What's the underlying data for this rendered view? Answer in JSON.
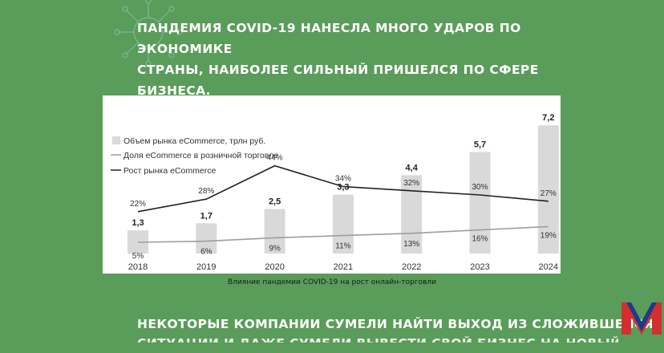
{
  "heading": {
    "line1": "Пандемия COVID-19 нанесла много ударов по экономике",
    "line2": "страны, наиболее сильный пришелся по сфере бизнеса."
  },
  "caption": "Влияние пандемии COVID-19 на рост онлайн-торговли",
  "bottom_text": {
    "line1": "Некоторые компании сумели найти выход из сложившейся",
    "line2": "ситуации и даже сумели вывести свой бизнес на новый уровень"
  },
  "colors": {
    "page_bg": "#5a9c5a",
    "bar": "#d9d9d9",
    "growth_line": "#222222",
    "share_line": "#9e9e9e"
  },
  "chart_data": {
    "type": "bar",
    "categories": [
      "2018",
      "2019",
      "2020",
      "2021",
      "2022",
      "2023",
      "2024"
    ],
    "series": [
      {
        "name": "Объем рынка eCommerce, трлн руб.",
        "type": "bar",
        "values": [
          1.3,
          1.7,
          2.5,
          3.3,
          4.4,
          5.7,
          7.2
        ],
        "labels": [
          "1,3",
          "1,7",
          "2,5",
          "3,3",
          "4,4",
          "5,7",
          "7,2"
        ]
      },
      {
        "name": "Доля eCommerce в розничной торговле",
        "type": "line",
        "values": [
          5,
          6,
          9,
          11,
          13,
          16,
          19
        ],
        "labels": [
          "5%",
          "6%",
          "9%",
          "11%",
          "13%",
          "16%",
          "19%"
        ]
      },
      {
        "name": "Рост рынка eCommerce",
        "type": "line",
        "values": [
          22,
          28,
          44,
          34,
          32,
          30,
          27
        ],
        "labels": [
          "22%",
          "28%",
          "44%",
          "34%",
          "32%",
          "30%",
          "27%"
        ]
      }
    ],
    "legend_position": "top-left",
    "grid": false
  }
}
